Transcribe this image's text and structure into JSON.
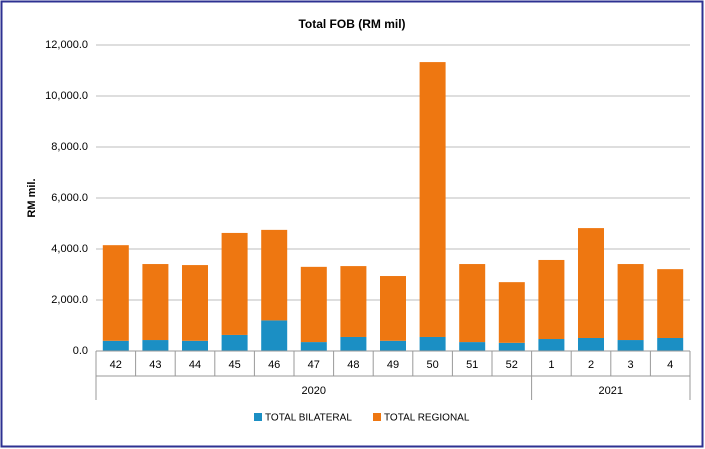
{
  "chart_data": {
    "type": "stacked_bar",
    "title": "Total FOB (RM mil)",
    "y_label": "RM mil.",
    "groups": [
      {
        "name": "2020",
        "categories": [
          "42",
          "43",
          "44",
          "45",
          "46",
          "47",
          "48",
          "49",
          "50",
          "51",
          "52"
        ]
      },
      {
        "name": "2021",
        "categories": [
          "1",
          "2",
          "3",
          "4"
        ]
      }
    ],
    "series": [
      {
        "name": "TOTAL BILATERAL",
        "color": "#1b8fc4",
        "values": [
          400,
          430,
          400,
          630,
          1200,
          350,
          550,
          400,
          550,
          350,
          320,
          470,
          510,
          430,
          510
        ]
      },
      {
        "name": "TOTAL REGIONAL",
        "color": "#ee7711",
        "values": [
          3750,
          2980,
          2970,
          4000,
          3550,
          2950,
          2780,
          2540,
          10780,
          3060,
          2380,
          3100,
          4310,
          2980,
          2700
        ]
      }
    ],
    "ylim": [
      0,
      12000
    ],
    "yticks": [
      {
        "value": 0,
        "label": "0.0"
      },
      {
        "value": 2000,
        "label": "2,000.0"
      },
      {
        "value": 4000,
        "label": "4,000.0"
      },
      {
        "value": 6000,
        "label": "6,000.0"
      },
      {
        "value": 8000,
        "label": "8,000.0"
      },
      {
        "value": 10000,
        "label": "10,000.0"
      },
      {
        "value": 12000,
        "label": "12,000.0"
      }
    ],
    "grid": true,
    "legend": "bottom"
  }
}
